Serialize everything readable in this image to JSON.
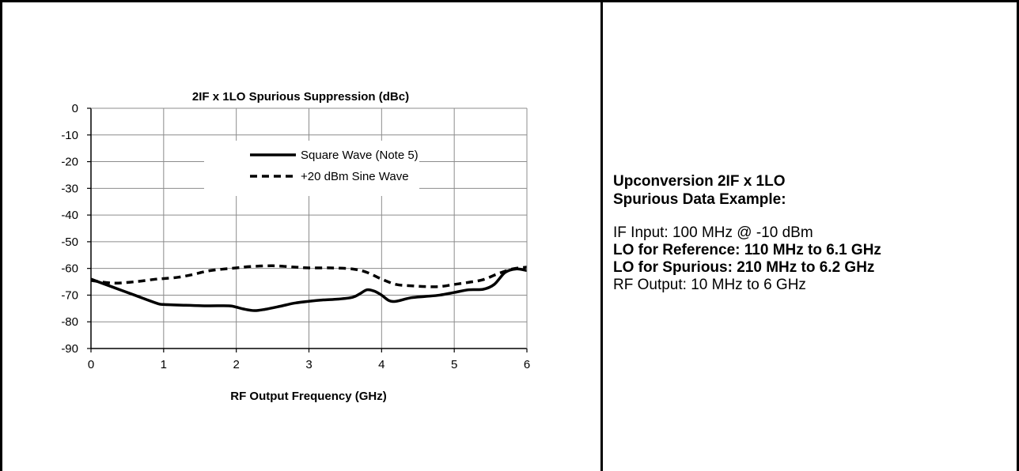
{
  "chart_data": {
    "type": "line",
    "title": "2IF x 1LO Spurious Suppression (dBc)",
    "xlabel": "RF Output Frequency (GHz)",
    "ylabel": "",
    "xlim": [
      0,
      6
    ],
    "ylim": [
      -90,
      0
    ],
    "xticks": [
      0,
      1,
      2,
      3,
      4,
      5,
      6
    ],
    "yticks": [
      0,
      -10,
      -20,
      -30,
      -40,
      -50,
      -60,
      -70,
      -80,
      -90
    ],
    "grid": true,
    "legend_position": "top-center",
    "series": [
      {
        "name": "Square Wave (Note 5)",
        "style": "solid",
        "color": "#000000",
        "x": [
          0,
          0.3,
          0.6,
          0.9,
          1.0,
          1.3,
          1.6,
          1.9,
          2.0,
          2.1,
          2.25,
          2.4,
          2.6,
          2.8,
          3.0,
          3.2,
          3.4,
          3.6,
          3.7,
          3.8,
          3.9,
          4.0,
          4.1,
          4.2,
          4.4,
          4.6,
          4.8,
          5.0,
          5.2,
          5.4,
          5.55,
          5.7,
          5.85,
          6.0
        ],
        "values": [
          -64,
          -67,
          -70,
          -73,
          -73.5,
          -73.8,
          -74,
          -74,
          -74.5,
          -75.2,
          -75.8,
          -75.3,
          -74.2,
          -73,
          -72.3,
          -71.8,
          -71.5,
          -70.8,
          -69.5,
          -68,
          -68.5,
          -70,
          -72,
          -72.3,
          -71,
          -70.5,
          -70,
          -69,
          -68,
          -67.8,
          -66,
          -61.5,
          -60.2,
          -60.8
        ]
      },
      {
        "name": "+20 dBm Sine Wave",
        "style": "dashed",
        "color": "#000000",
        "x": [
          0,
          0.3,
          0.6,
          0.9,
          1.0,
          1.2,
          1.4,
          1.6,
          1.8,
          2.0,
          2.2,
          2.5,
          2.8,
          3.0,
          3.3,
          3.6,
          3.8,
          4.0,
          4.2,
          4.4,
          4.6,
          4.8,
          5.0,
          5.2,
          5.4,
          5.6,
          5.8,
          6.0
        ],
        "values": [
          -64.5,
          -65.5,
          -65,
          -64,
          -63.8,
          -63.3,
          -62.3,
          -61,
          -60.3,
          -59.8,
          -59.3,
          -59,
          -59.5,
          -59.8,
          -59.8,
          -60.2,
          -61.5,
          -64,
          -66,
          -66.5,
          -66.8,
          -66.8,
          -66,
          -65.2,
          -64.2,
          -62,
          -60.2,
          -59.5
        ]
      }
    ]
  },
  "info": {
    "heading_line1": "Upconversion 2IF x 1LO",
    "heading_line2": "Spurious Data Example:",
    "if_input": "IF Input: 100 MHz @ -10 dBm",
    "lo_reference": "LO for Reference: 110 MHz to 6.1 GHz",
    "lo_spurious": "LO for Spurious: 210 MHz to 6.2 GHz",
    "rf_output": "RF Output: 10 MHz to 6 GHz"
  }
}
